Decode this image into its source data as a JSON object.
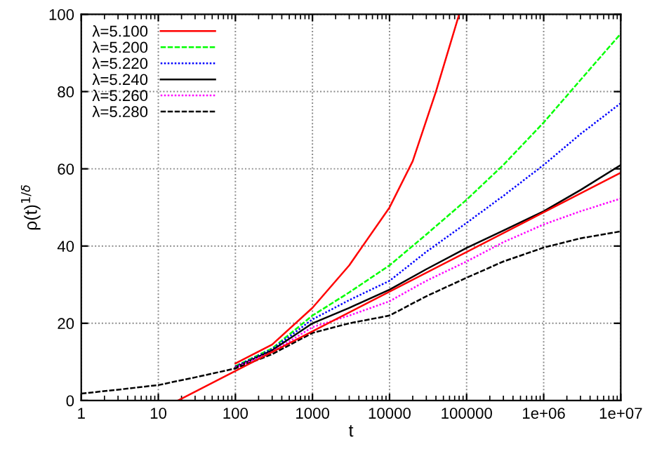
{
  "chart_data": {
    "type": "line",
    "xlabel": "t",
    "ylabel": "ρ(t)$^{1/δ}$",
    "log": "x",
    "grid": true,
    "legend": "top left",
    "xlim": [
      1,
      10000000
    ],
    "ylim": [
      0,
      100
    ],
    "xticks": [
      1,
      10,
      100,
      1000,
      10000,
      100000,
      {
        "value": 1000000,
        "label": "1e+06"
      },
      {
        "value": 10000000,
        "label": "1e+07"
      }
    ],
    "yticks": [
      0,
      20,
      40,
      60,
      80,
      100
    ],
    "series": [
      {
        "name": "λ=5.100",
        "color": "#ff0000",
        "line_style": "solid",
        "x": [
          100,
          300,
          1000,
          3000,
          10000,
          20000,
          40000,
          80000
        ],
        "values": [
          9.6,
          14.5,
          24,
          35,
          50,
          62,
          80,
          100
        ]
      },
      {
        "name": "λ=5.200",
        "color": "#00ff00",
        "line_style": "dashed",
        "x": [
          100,
          300,
          1000,
          3000,
          10000,
          30000,
          100000,
          300000,
          1000000,
          3000000,
          10000000
        ],
        "values": [
          8.9,
          13.5,
          22,
          28,
          35,
          43,
          52,
          61,
          72,
          83,
          95
        ]
      },
      {
        "name": "λ=5.220",
        "color": "#0000ff",
        "line_style": "dotted",
        "x": [
          100,
          300,
          1000,
          3000,
          10000,
          30000,
          100000,
          300000,
          1000000,
          3000000,
          10000000
        ],
        "values": [
          8.8,
          13.3,
          21,
          26,
          31,
          38.5,
          46,
          53,
          61,
          69,
          77
        ]
      },
      {
        "name": "λ=5.240",
        "color": "#000000",
        "line_style": "solid",
        "x": [
          100,
          300,
          1000,
          3000,
          10000,
          30000,
          100000,
          300000,
          1000000,
          3000000,
          10000000
        ],
        "values": [
          8.6,
          13.0,
          20,
          24,
          28.7,
          34,
          39.5,
          44,
          49,
          54.5,
          61
        ]
      },
      {
        "name": "λ=5.260",
        "color": "#ff00ff",
        "line_style": "dotted",
        "x": [
          100,
          300,
          1000,
          3000,
          10000,
          30000,
          100000,
          300000,
          1000000,
          3000000,
          10000000
        ],
        "values": [
          8.5,
          12.6,
          19,
          22,
          25.7,
          31,
          36,
          41,
          45.6,
          49,
          52.3
        ]
      },
      {
        "name": "λ=5.280",
        "color": "#000000",
        "line_style": "dashed",
        "x": [
          1,
          3,
          10,
          30,
          100,
          300,
          1000,
          3000,
          10000,
          30000,
          100000,
          300000,
          1000000,
          3000000,
          10000000
        ],
        "values": [
          1.8,
          2.8,
          4.0,
          6.0,
          8.3,
          12.0,
          17.5,
          20,
          22,
          27,
          31.8,
          36,
          39.6,
          42,
          43.8
        ]
      },
      {
        "color": "#ff0000",
        "line_style": "solid",
        "x": [
          18,
          10000000
        ],
        "values": [
          0,
          59
        ]
      }
    ]
  }
}
